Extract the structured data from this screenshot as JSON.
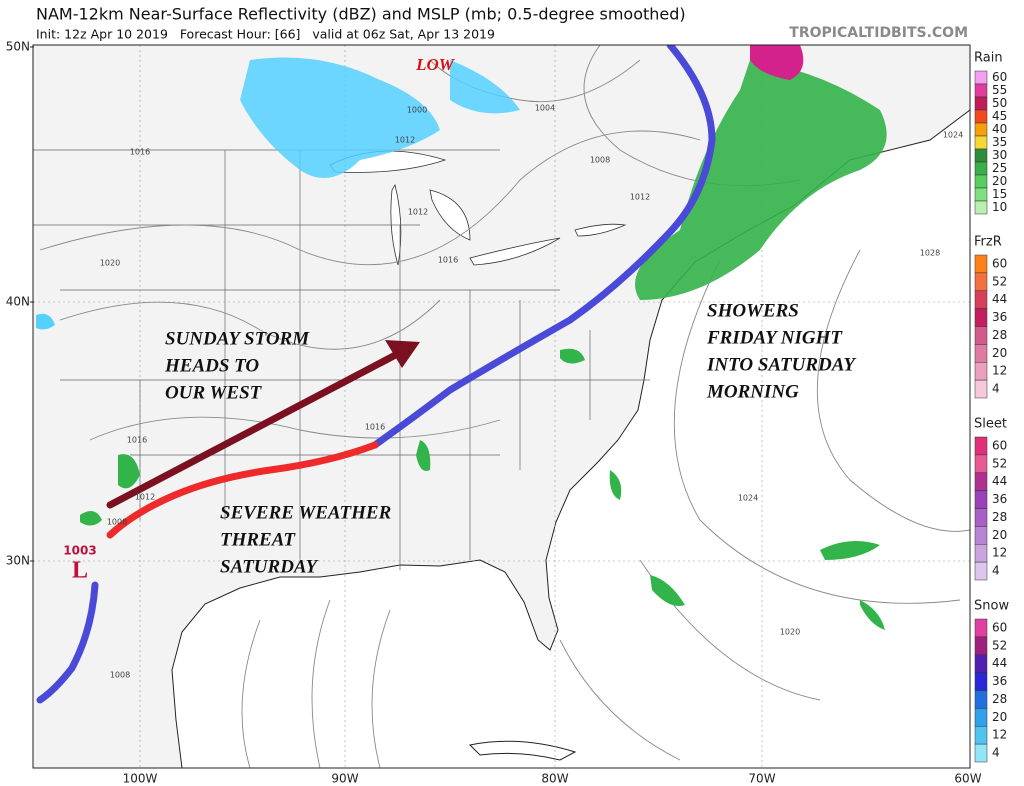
{
  "header": {
    "title": "NAM-12km Near-Surface Reflectivity (dBZ) and MSLP (mb; 0.5-degree smoothed)",
    "subtitle": "Init: 12z Apr 10 2019   Forecast Hour: [66]   valid at 06z Sat, Apr 13 2019",
    "site": "TROPICALTIDBITS.COM"
  },
  "map": {
    "lat_labels": [
      "50N",
      "40N",
      "30N"
    ],
    "lon_labels": [
      "100W",
      "90W",
      "80W",
      "70W",
      "60W"
    ],
    "annotations": [
      {
        "lines": [
          "SUNDAY STORM",
          "HEADS TO",
          "OUR WEST"
        ]
      },
      {
        "lines": [
          "SEVERE WEATHER",
          "THREAT",
          "SATURDAY"
        ]
      },
      {
        "lines": [
          "SHOWERS",
          "FRIDAY NIGHT",
          "INTO SATURDAY",
          "MORNING"
        ]
      }
    ],
    "lows": [
      {
        "label": "LOW"
      },
      {
        "label": "L",
        "pressure": "1003"
      }
    ],
    "isobar_labels": [
      "1016",
      "1020",
      "1012",
      "1016",
      "1008",
      "1004",
      "1000",
      "1012",
      "1016",
      "1008",
      "1012",
      "1028",
      "1024",
      "1024",
      "1020",
      "1016",
      "1008",
      "1012"
    ]
  },
  "legends": [
    {
      "title": "Rain",
      "ticks": [
        "60",
        "55",
        "50",
        "45",
        "40",
        "35",
        "30",
        "25",
        "20",
        "15",
        "10"
      ]
    },
    {
      "title": "FrzR",
      "ticks": [
        "60",
        "52",
        "44",
        "36",
        "28",
        "20",
        "12",
        "4"
      ]
    },
    {
      "title": "Sleet",
      "ticks": [
        "60",
        "52",
        "44",
        "36",
        "28",
        "20",
        "12",
        "4"
      ]
    },
    {
      "title": "Snow",
      "ticks": [
        "60",
        "52",
        "44",
        "36",
        "28",
        "20",
        "12",
        "4"
      ]
    }
  ]
}
